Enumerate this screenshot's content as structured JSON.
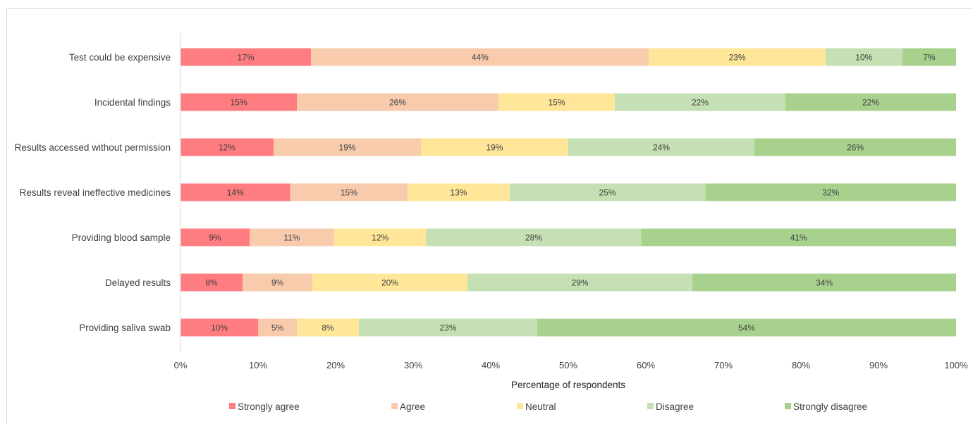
{
  "chart_data": {
    "type": "bar",
    "orientation": "horizontal",
    "stacked": "percent",
    "title": "",
    "xlabel": "Percentage of respondents",
    "ylabel": "",
    "xlim": [
      0,
      100
    ],
    "x_ticks": [
      "0%",
      "10%",
      "20%",
      "30%",
      "40%",
      "50%",
      "60%",
      "70%",
      "80%",
      "90%",
      "100%"
    ],
    "categories": [
      "Test could be expensive",
      "Incidental findings",
      "Results accessed without permission",
      "Results reveal ineffective medicines",
      "Providing blood sample",
      "Delayed results",
      "Providing saliva swab"
    ],
    "series": [
      {
        "name": "Strongly agree",
        "color": "#ff7c80",
        "values": [
          17,
          15,
          12,
          14,
          9,
          8,
          10
        ]
      },
      {
        "name": "Agree",
        "color": "#f8cbad",
        "values": [
          44,
          26,
          19,
          15,
          11,
          9,
          5
        ]
      },
      {
        "name": "Neutral",
        "color": "#ffe699",
        "values": [
          23,
          15,
          19,
          13,
          12,
          20,
          8
        ]
      },
      {
        "name": "Disagree",
        "color": "#c5e0b4",
        "values": [
          10,
          22,
          24,
          25,
          28,
          29,
          23
        ]
      },
      {
        "name": "Strongly disagree",
        "color": "#a9d18e",
        "values": [
          7,
          22,
          26,
          32,
          41,
          34,
          54
        ]
      }
    ],
    "data_labels": true,
    "legend_position": "bottom",
    "grid": false
  }
}
